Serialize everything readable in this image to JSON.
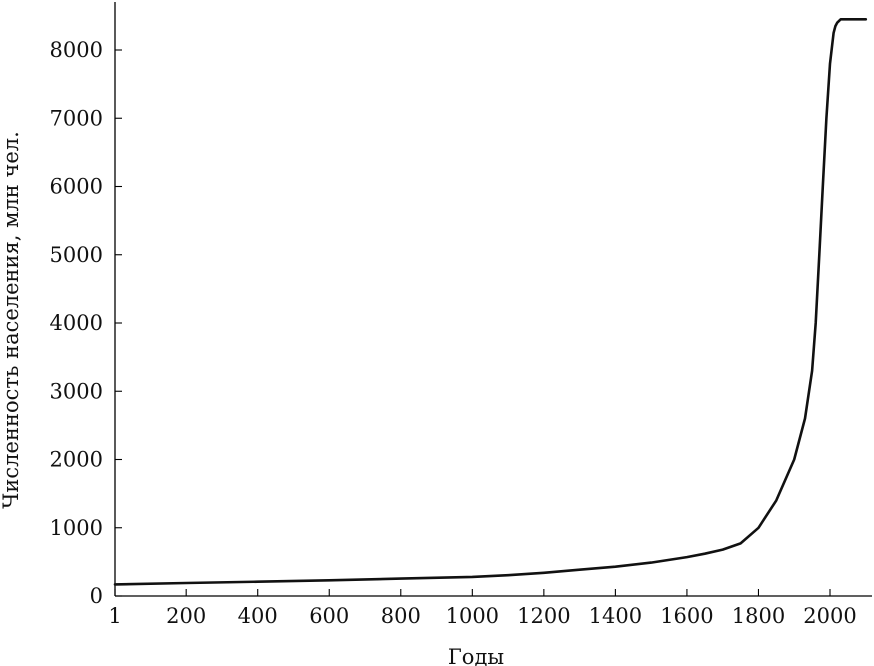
{
  "chart_data": {
    "type": "line",
    "xlabel": "Годы",
    "ylabel": "Численность населения, млн чел.",
    "xlim": [
      1,
      2100
    ],
    "ylim": [
      0,
      8500
    ],
    "x_ticks": [
      1,
      200,
      400,
      600,
      800,
      1000,
      1200,
      1400,
      1600,
      1800,
      2000
    ],
    "y_ticks": [
      0,
      1000,
      2000,
      3000,
      4000,
      5000,
      6000,
      7000,
      8000
    ],
    "grid": false,
    "series": [
      {
        "x": [
          1,
          200,
          400,
          600,
          800,
          1000,
          1100,
          1200,
          1300,
          1400,
          1500,
          1600,
          1650,
          1700,
          1750,
          1800,
          1850,
          1900,
          1930,
          1950,
          1960,
          1970,
          1980,
          1990,
          2000,
          2010,
          2015,
          2020,
          2030,
          2050,
          2100
        ],
        "y": [
          170,
          190,
          210,
          230,
          255,
          280,
          305,
          340,
          385,
          430,
          490,
          570,
          620,
          680,
          770,
          1000,
          1400,
          2000,
          2600,
          3300,
          4000,
          5000,
          6000,
          7000,
          7800,
          8250,
          8350,
          8400,
          8450,
          8450,
          8450
        ]
      }
    ]
  }
}
